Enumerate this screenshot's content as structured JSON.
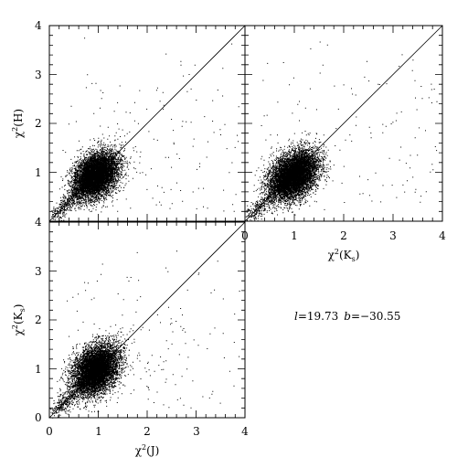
{
  "chart_data": [
    {
      "id": "panel-top-left",
      "type": "scatter",
      "xlabel": "",
      "ylabel": {
        "main": "χ",
        "sup": "2",
        "tail": "(H)"
      },
      "xlim": [
        0,
        4
      ],
      "ylim": [
        0,
        4
      ],
      "yticks": [
        1,
        2,
        3,
        4
      ],
      "xticks": [],
      "reference_line": "y = x",
      "cloud": {
        "center_x": 0.95,
        "center_y": 0.95,
        "spread_x": 0.22,
        "spread_y": 0.22,
        "n_points": 7500,
        "outliers": 160,
        "seed": 11
      },
      "tick_text": {
        "y1": "1",
        "y2": "2",
        "y3": "3",
        "y4": "4"
      }
    },
    {
      "id": "panel-top-right",
      "type": "scatter",
      "xlabel": {
        "main": "χ",
        "sup": "2",
        "tail": "(K",
        "sub": "s",
        "end": ")"
      },
      "ylabel": "",
      "xlim": [
        0,
        4
      ],
      "ylim": [
        0,
        4
      ],
      "xticks": [
        0,
        1,
        2,
        3,
        4
      ],
      "yticks": [],
      "reference_line": "y = x",
      "cloud": {
        "center_x": 0.98,
        "center_y": 0.95,
        "spread_x": 0.24,
        "spread_y": 0.23,
        "n_points": 7500,
        "outliers": 140,
        "seed": 23
      },
      "tick_text": {
        "x0": "0",
        "x1": "1",
        "x2": "2",
        "x3": "3",
        "x4": "4"
      }
    },
    {
      "id": "panel-bottom-left",
      "type": "scatter",
      "xlabel": {
        "main": "χ",
        "sup": "2",
        "tail": "(J)"
      },
      "ylabel": {
        "main": "χ",
        "sup": "2",
        "tail": "(K",
        "sub": "s",
        "end": ")"
      },
      "xlim": [
        0,
        4
      ],
      "ylim": [
        0,
        4
      ],
      "xticks": [
        0,
        1,
        2,
        3,
        4
      ],
      "yticks": [
        0,
        1,
        2,
        3
      ],
      "reference_line": "y = x",
      "cloud": {
        "center_x": 0.95,
        "center_y": 1.0,
        "spread_x": 0.23,
        "spread_y": 0.24,
        "n_points": 7500,
        "outliers": 150,
        "seed": 37
      },
      "tick_text": {
        "x0": "0",
        "x1": "1",
        "x2": "2",
        "x3": "3",
        "x4": "4",
        "y0": "0",
        "y1": "1",
        "y2": "2",
        "y3": "3",
        "ytop": "4"
      }
    }
  ],
  "annotation": {
    "l_label": "l",
    "l_value": "=19.73",
    "b_label": "b",
    "b_value": "=−30.55"
  },
  "colors": {
    "points": "#000000",
    "frame": "#000000",
    "background": "#ffffff"
  }
}
